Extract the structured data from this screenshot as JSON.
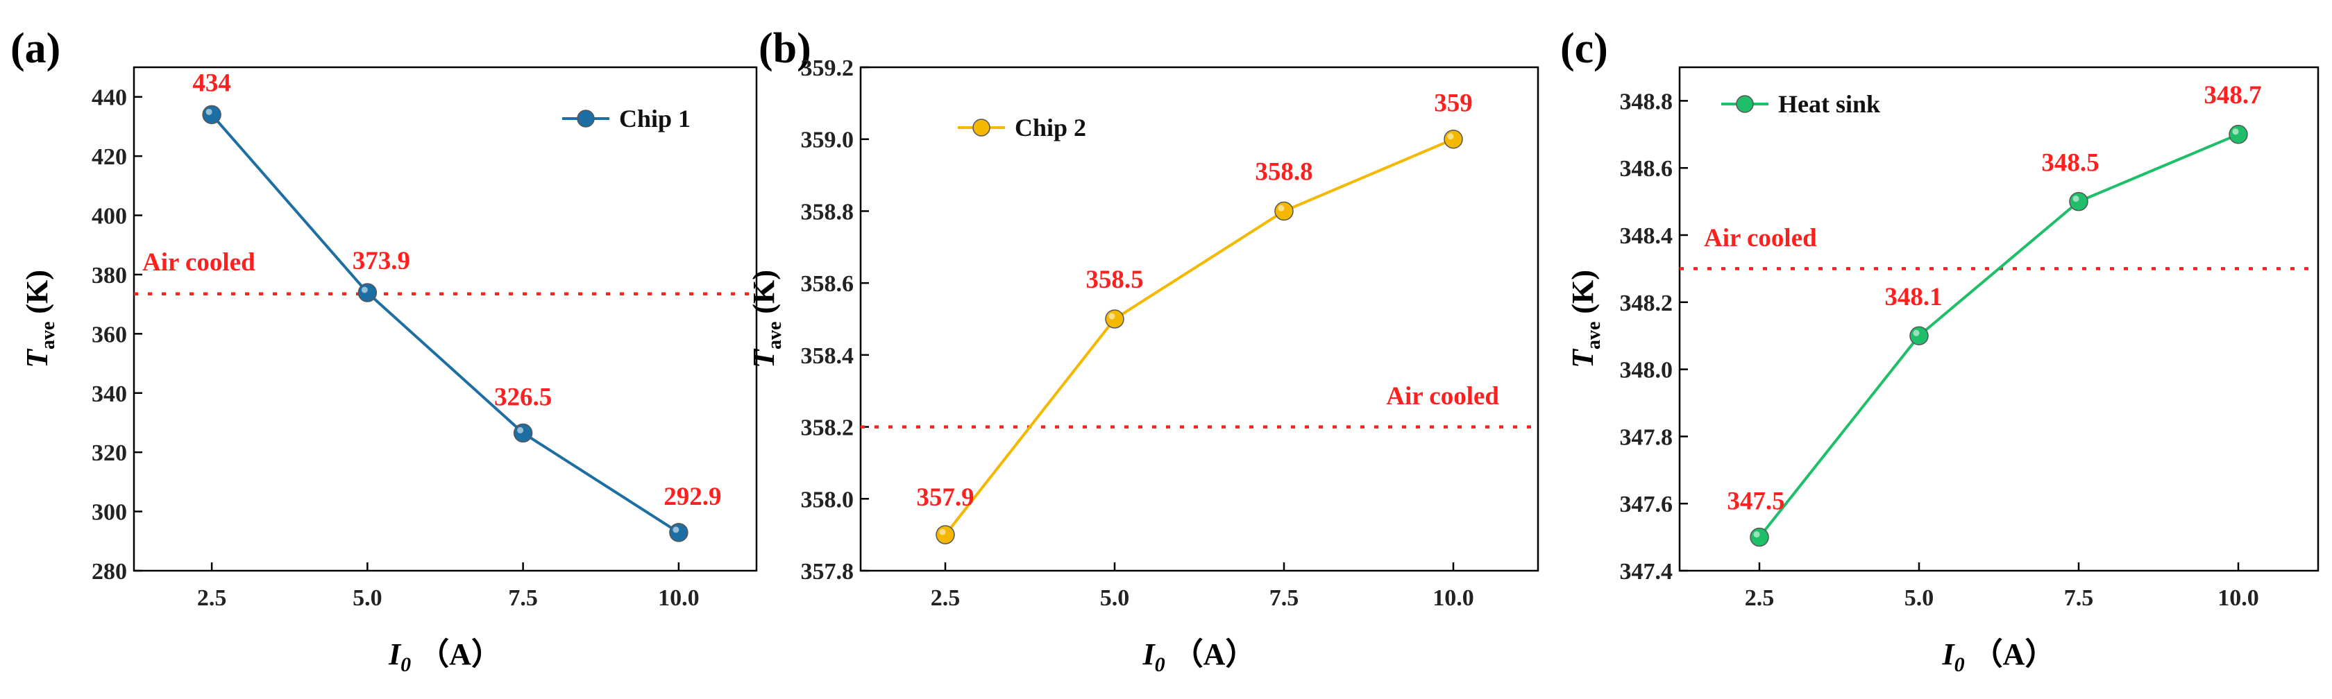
{
  "chart_data": [
    {
      "type": "line",
      "panel": "(a)",
      "x": [
        2.5,
        5.0,
        7.5,
        10.0
      ],
      "xtick_labels": [
        "2.5",
        "5.0",
        "7.5",
        "10.0"
      ],
      "xlim": [
        1.25,
        11.25
      ],
      "series": [
        {
          "name": "Chip 1",
          "values": [
            434,
            373.9,
            326.5,
            292.9
          ],
          "color": "#1d6fa3"
        }
      ],
      "data_labels": [
        "434",
        "373.9",
        "326.5",
        "292.9"
      ],
      "ylim": [
        280,
        450
      ],
      "yticks": [
        280,
        300,
        320,
        340,
        360,
        380,
        400,
        420,
        440
      ],
      "ytick_labels": [
        "280",
        "300",
        "320",
        "340",
        "360",
        "380",
        "400",
        "420",
        "440"
      ],
      "xlabel_main": "I",
      "xlabel_sub": "0",
      "xlabel_unit": "（A）",
      "ylabel_main": "T",
      "ylabel_sub": "ave",
      "ylabel_unit": "(K)",
      "reference": {
        "label": "Air cooled",
        "value": 373.5,
        "color": "#ff1f1f"
      },
      "legend": {
        "label": "Chip 1",
        "position": "top-right"
      }
    },
    {
      "type": "line",
      "panel": "(b)",
      "x": [
        2.5,
        5.0,
        7.5,
        10.0
      ],
      "xtick_labels": [
        "2.5",
        "5.0",
        "7.5",
        "10.0"
      ],
      "xlim": [
        1.25,
        11.25
      ],
      "series": [
        {
          "name": "Chip 2",
          "values": [
            357.9,
            358.5,
            358.8,
            359.0
          ],
          "color": "#f5b800"
        }
      ],
      "data_labels": [
        "357.9",
        "358.5",
        "358.8",
        "359"
      ],
      "ylim": [
        357.8,
        359.2
      ],
      "yticks": [
        357.8,
        358.0,
        358.2,
        358.4,
        358.6,
        358.8,
        359.0,
        359.2
      ],
      "ytick_labels": [
        "357.8",
        "358.0",
        "358.2",
        "358.4",
        "358.6",
        "358.8",
        "359.0",
        "359.2"
      ],
      "xlabel_main": "I",
      "xlabel_sub": "0",
      "xlabel_unit": "（A）",
      "ylabel_main": "T",
      "ylabel_sub": "ave",
      "ylabel_unit": "(K)",
      "reference": {
        "label": "Air cooled",
        "value": 358.2,
        "color": "#ff1f1f"
      },
      "legend": {
        "label": "Chip 2",
        "position": "top-left"
      }
    },
    {
      "type": "line",
      "panel": "(c)",
      "x": [
        2.5,
        5.0,
        7.5,
        10.0
      ],
      "xtick_labels": [
        "2.5",
        "5.0",
        "7.5",
        "10.0"
      ],
      "xlim": [
        1.25,
        11.25
      ],
      "series": [
        {
          "name": "Heat sink",
          "values": [
            347.5,
            348.1,
            348.5,
            348.7
          ],
          "color": "#1fbf6a"
        }
      ],
      "data_labels": [
        "347.5",
        "348.1",
        "348.5",
        "348.7"
      ],
      "ylim": [
        347.4,
        348.9
      ],
      "yticks": [
        347.4,
        347.6,
        347.8,
        348.0,
        348.2,
        348.4,
        348.6,
        348.8
      ],
      "ytick_labels": [
        "347.4",
        "347.6",
        "347.8",
        "348.0",
        "348.2",
        "348.4",
        "348.6",
        "348.8"
      ],
      "xlabel_main": "I",
      "xlabel_sub": "0",
      "xlabel_unit": "（A）",
      "ylabel_main": "T",
      "ylabel_sub": "ave",
      "ylabel_unit": "(K)",
      "reference": {
        "label": "Air cooled",
        "value": 348.3,
        "color": "#ff1f1f"
      },
      "legend": {
        "label": "Heat sink",
        "position": "top-left"
      }
    }
  ]
}
